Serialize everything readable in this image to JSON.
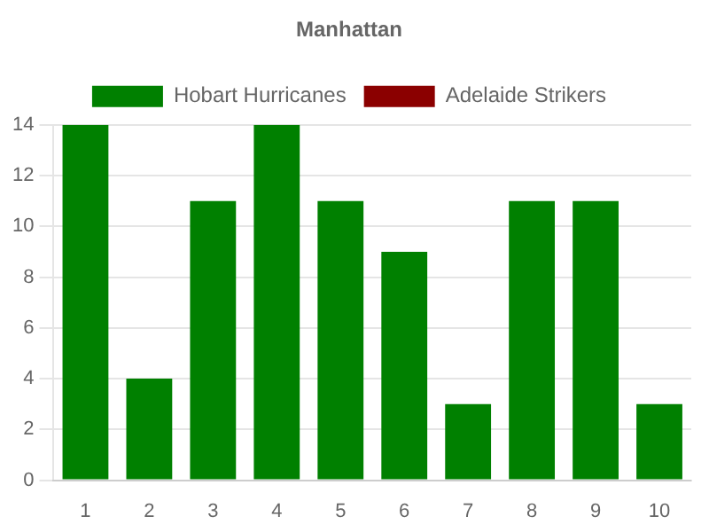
{
  "chart_data": {
    "type": "bar",
    "title": "Manhattan",
    "categories": [
      "1",
      "2",
      "3",
      "4",
      "5",
      "6",
      "7",
      "8",
      "9",
      "10"
    ],
    "series": [
      {
        "name": "Hobart Hurricanes",
        "color": "#008000",
        "values": [
          14,
          4,
          11,
          14,
          11,
          9,
          3,
          11,
          11,
          3
        ]
      },
      {
        "name": "Adelaide Strikers",
        "color": "#8b0000",
        "values": [
          null,
          null,
          null,
          null,
          null,
          null,
          null,
          null,
          null,
          null
        ]
      }
    ],
    "ylim": [
      0,
      14
    ],
    "yticks": [
      0,
      2,
      4,
      6,
      8,
      10,
      12,
      14
    ],
    "grid": "y",
    "legend": "top"
  }
}
